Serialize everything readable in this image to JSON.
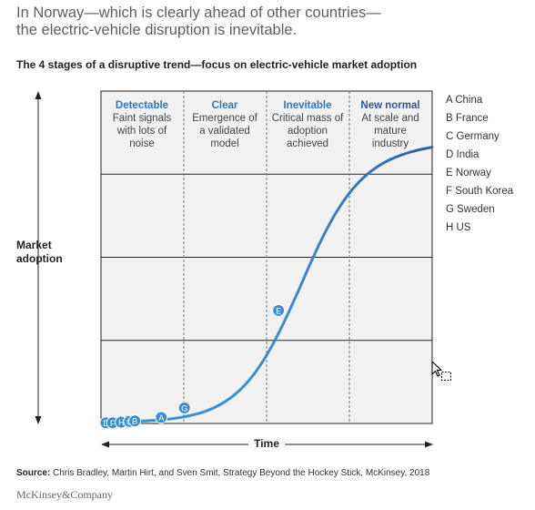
{
  "headline": [
    "In Norway—which is clearly ahead of other countries—",
    "the electric-vehicle disruption is inevitable."
  ],
  "subtitle": "The 4 stages of a disruptive trend—focus on electric-vehicle market adoption",
  "colors": {
    "curve": "#3a8fd4",
    "curve_dark": "#2a62a8",
    "marker": "#3a8fd4",
    "grid": "#222222",
    "plot_bg": "#f2f2f2"
  },
  "chart_data": {
    "type": "line",
    "xlabel": "Time",
    "ylabel": [
      "Market",
      "adoption"
    ],
    "stages": [
      {
        "title": "Detectable",
        "desc": [
          "Faint signals",
          "with lots of",
          "noise"
        ]
      },
      {
        "title": "Clear",
        "desc": [
          "Emergence of",
          "a validated",
          "model"
        ]
      },
      {
        "title": "Inevitable",
        "desc": [
          "Critical mass of",
          "adoption",
          "achieved"
        ]
      },
      {
        "title": "New normal",
        "desc": [
          "At scale and",
          "mature",
          "industry"
        ]
      }
    ],
    "legend": [
      "A China",
      "B France",
      "C Germany",
      "D India",
      "E Norway",
      "F South Korea",
      "G Sweden",
      "H US"
    ],
    "points": [
      {
        "label": "D",
        "country": "India",
        "x": 0.015,
        "y": 0.002
      },
      {
        "label": "F",
        "country": "South Korea",
        "x": 0.035,
        "y": 0.002
      },
      {
        "label": "H",
        "country": "US",
        "x": 0.061,
        "y": 0.004
      },
      {
        "label": "C",
        "country": "Germany",
        "x": 0.086,
        "y": 0.006
      },
      {
        "label": "B",
        "country": "France",
        "x": 0.102,
        "y": 0.008
      },
      {
        "label": "A",
        "country": "China",
        "x": 0.182,
        "y": 0.018
      },
      {
        "label": "G",
        "country": "Sweden",
        "x": 0.252,
        "y": 0.047
      },
      {
        "label": "E",
        "country": "Norway",
        "x": 0.536,
        "y": 0.34
      }
    ]
  },
  "source_label": "Source:",
  "source_text": "Chris Bradley, Martin Hirt, and Sven Smit, Strategy Beyond the Hockey Stick, McKinsey, 2018",
  "brand": "McKinsey&Company"
}
